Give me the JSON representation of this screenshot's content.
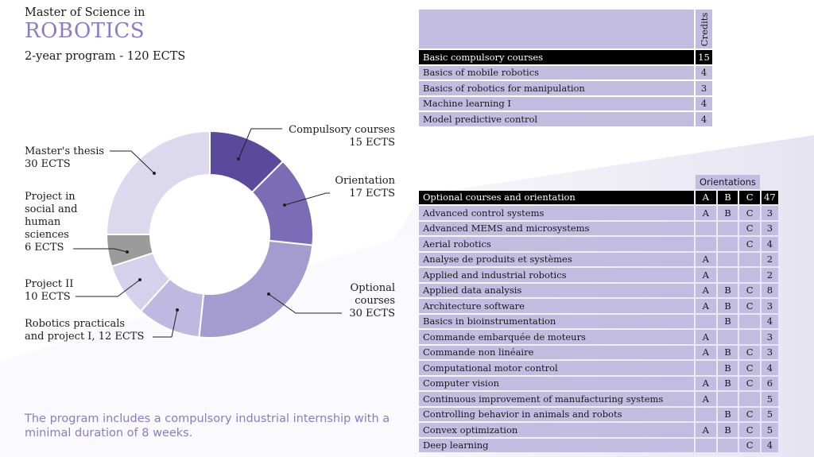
{
  "header": {
    "subtitle": "Master of Science in",
    "title": "ROBOTICS",
    "program": "2-year program - 120 ECTS"
  },
  "chart_data": {
    "type": "pie",
    "donut": true,
    "slices": [
      {
        "name": "Compulsory courses",
        "value": 15,
        "color": "#5b4a9c"
      },
      {
        "name": "Orientation",
        "value": 17,
        "color": "#7b6cb6"
      },
      {
        "name": "Optional courses",
        "value": 30,
        "color": "#a49bcf"
      },
      {
        "name": "Robotics practicals and project I",
        "value": 12,
        "color": "#bfb8e0"
      },
      {
        "name": "Project II",
        "value": 10,
        "color": "#d5d0ec"
      },
      {
        "name": "Project in social and human sciences",
        "value": 6,
        "color": "#9b9b9b"
      },
      {
        "name": "Master's thesis",
        "value": 30,
        "color": "#dcd8ee"
      }
    ],
    "labels": {
      "compulsory": [
        "Compulsory courses",
        "15 ECTS"
      ],
      "orientation": [
        "Orientation",
        "17 ECTS"
      ],
      "optional": [
        "Optional",
        "courses",
        "30 ECTS"
      ],
      "practicals": [
        "Robotics practicals",
        "and project I, 12 ECTS"
      ],
      "project2": [
        "Project II",
        "10 ECTS"
      ],
      "shs": [
        "Project in",
        "social and",
        "human",
        "sciences",
        "6 ECTS"
      ],
      "thesis": [
        "Master's thesis",
        "30 ECTS"
      ]
    }
  },
  "note": "The program includes a compulsory industrial internship with a minimal duration of 8 weeks.",
  "table1": {
    "credits_header": "Credits",
    "head": {
      "name": "Basic compulsory courses",
      "credits": "15"
    },
    "rows": [
      {
        "name": "Basics of mobile robotics",
        "credits": "4"
      },
      {
        "name": "Basics of robotics for manipulation",
        "credits": "3"
      },
      {
        "name": "Machine learning I",
        "credits": "4"
      },
      {
        "name": "Model predictive control",
        "credits": "4"
      }
    ]
  },
  "table2": {
    "orientations_header": "Orientations",
    "head": {
      "name": "Optional courses and orientation",
      "a": "A",
      "b": "B",
      "c": "C",
      "credits": "47"
    },
    "rows": [
      {
        "name": "Advanced control systems",
        "a": "A",
        "b": "B",
        "c": "C",
        "credits": "3"
      },
      {
        "name": "Advanced MEMS and microsystems",
        "a": "",
        "b": "",
        "c": "C",
        "credits": "3"
      },
      {
        "name": "Aerial robotics",
        "a": "",
        "b": "",
        "c": "C",
        "credits": "4"
      },
      {
        "name": "Analyse de produits et systèmes",
        "a": "A",
        "b": "",
        "c": "",
        "credits": "2"
      },
      {
        "name": "Applied and industrial robotics",
        "a": "A",
        "b": "",
        "c": "",
        "credits": "2"
      },
      {
        "name": "Applied data analysis",
        "a": "A",
        "b": "B",
        "c": "C",
        "credits": "8"
      },
      {
        "name": "Architecture software",
        "a": "A",
        "b": "B",
        "c": "C",
        "credits": "3"
      },
      {
        "name": "Basics in bioinstrumentation",
        "a": "",
        "b": "B",
        "c": "",
        "credits": "4"
      },
      {
        "name": "Commande embarquée de moteurs",
        "a": "A",
        "b": "",
        "c": "",
        "credits": "3"
      },
      {
        "name": "Commande non linéaire",
        "a": "A",
        "b": "B",
        "c": "C",
        "credits": "3"
      },
      {
        "name": "Computational motor control",
        "a": "",
        "b": "B",
        "c": "C",
        "credits": "4"
      },
      {
        "name": "Computer vision",
        "a": "A",
        "b": "B",
        "c": "C",
        "credits": "6"
      },
      {
        "name": "Continuous improvement of manufacturing systems",
        "a": "A",
        "b": "",
        "c": "",
        "credits": "5"
      },
      {
        "name": "Controlling behavior in animals and robots",
        "a": "",
        "b": "B",
        "c": "C",
        "credits": "5"
      },
      {
        "name": "Convex optimization",
        "a": "A",
        "b": "B",
        "c": "C",
        "credits": "5"
      },
      {
        "name": "Deep learning",
        "a": "",
        "b": "",
        "c": "C",
        "credits": "4"
      }
    ]
  }
}
